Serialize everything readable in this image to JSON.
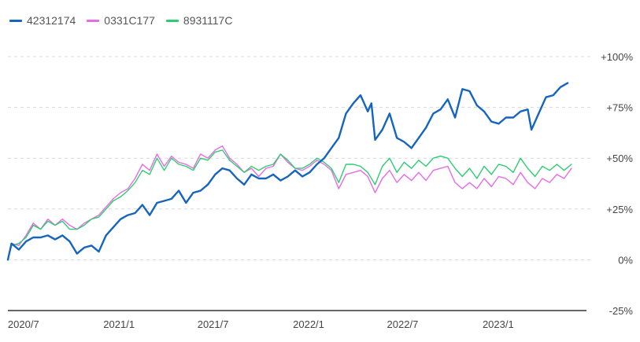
{
  "chart_data": {
    "type": "line",
    "title": "",
    "xlabel": "",
    "ylabel": "",
    "ylim": [
      -25,
      100
    ],
    "x_range": [
      "2020-06-01",
      "2023-06-20"
    ],
    "x_tick_labels": [
      {
        "date": "2020-07-01",
        "label": "2020/7"
      },
      {
        "date": "2021-01-01",
        "label": "2021/1"
      },
      {
        "date": "2021-07-01",
        "label": "2021/7"
      },
      {
        "date": "2022-01-01",
        "label": "2022/1"
      },
      {
        "date": "2022-07-01",
        "label": "2022/7"
      },
      {
        "date": "2023-01-01",
        "label": "2023/1"
      }
    ],
    "y_ticks": [
      {
        "value": 100,
        "label": "+100%"
      },
      {
        "value": 75,
        "label": "+75%"
      },
      {
        "value": 50,
        "label": "+50%"
      },
      {
        "value": 25,
        "label": "+25%"
      },
      {
        "value": 0,
        "label": "0%"
      },
      {
        "value": -25,
        "label": "-25%"
      }
    ],
    "grid": "horizontal dashed",
    "legend_position": "top-left",
    "series": [
      {
        "name": "42312174",
        "color": "#1565c0",
        "points": [
          [
            "2020-06-01",
            0
          ],
          [
            "2020-06-08",
            8
          ],
          [
            "2020-06-22",
            5
          ],
          [
            "2020-07-06",
            9
          ],
          [
            "2020-07-20",
            11
          ],
          [
            "2020-08-03",
            11
          ],
          [
            "2020-08-17",
            12
          ],
          [
            "2020-08-31",
            10
          ],
          [
            "2020-09-14",
            12
          ],
          [
            "2020-09-28",
            9
          ],
          [
            "2020-10-12",
            3
          ],
          [
            "2020-10-26",
            6
          ],
          [
            "2020-11-09",
            7
          ],
          [
            "2020-11-23",
            4
          ],
          [
            "2020-12-07",
            12
          ],
          [
            "2020-12-21",
            16
          ],
          [
            "2021-01-04",
            20
          ],
          [
            "2021-01-18",
            22
          ],
          [
            "2021-02-01",
            23
          ],
          [
            "2021-02-15",
            27
          ],
          [
            "2021-03-01",
            22
          ],
          [
            "2021-03-15",
            28
          ],
          [
            "2021-03-29",
            29
          ],
          [
            "2021-04-12",
            30
          ],
          [
            "2021-04-26",
            34
          ],
          [
            "2021-05-10",
            28
          ],
          [
            "2021-05-24",
            33
          ],
          [
            "2021-06-07",
            34
          ],
          [
            "2021-06-21",
            37
          ],
          [
            "2021-07-05",
            42
          ],
          [
            "2021-07-19",
            45
          ],
          [
            "2021-08-02",
            44
          ],
          [
            "2021-08-16",
            40
          ],
          [
            "2021-08-30",
            37
          ],
          [
            "2021-09-13",
            42
          ],
          [
            "2021-09-27",
            40
          ],
          [
            "2021-10-11",
            40
          ],
          [
            "2021-10-25",
            42
          ],
          [
            "2021-11-08",
            39
          ],
          [
            "2021-11-22",
            41
          ],
          [
            "2021-12-06",
            44
          ],
          [
            "2021-12-20",
            41
          ],
          [
            "2022-01-03",
            43
          ],
          [
            "2022-01-17",
            47
          ],
          [
            "2022-01-31",
            50
          ],
          [
            "2022-02-14",
            55
          ],
          [
            "2022-02-28",
            60
          ],
          [
            "2022-03-14",
            72
          ],
          [
            "2022-03-28",
            77
          ],
          [
            "2022-04-11",
            81
          ],
          [
            "2022-04-25",
            73
          ],
          [
            "2022-05-02",
            77
          ],
          [
            "2022-05-09",
            59
          ],
          [
            "2022-05-23",
            64
          ],
          [
            "2022-06-06",
            72
          ],
          [
            "2022-06-20",
            60
          ],
          [
            "2022-07-04",
            58
          ],
          [
            "2022-07-18",
            55
          ],
          [
            "2022-08-01",
            60
          ],
          [
            "2022-08-15",
            65
          ],
          [
            "2022-08-29",
            72
          ],
          [
            "2022-09-12",
            74
          ],
          [
            "2022-09-26",
            79
          ],
          [
            "2022-10-10",
            70
          ],
          [
            "2022-10-24",
            84
          ],
          [
            "2022-11-07",
            83
          ],
          [
            "2022-11-21",
            76
          ],
          [
            "2022-12-05",
            73
          ],
          [
            "2022-12-19",
            68
          ],
          [
            "2023-01-02",
            67
          ],
          [
            "2023-01-16",
            70
          ],
          [
            "2023-01-30",
            70
          ],
          [
            "2023-02-13",
            73
          ],
          [
            "2023-02-27",
            74
          ],
          [
            "2023-03-06",
            64
          ],
          [
            "2023-03-20",
            72
          ],
          [
            "2023-04-03",
            80
          ],
          [
            "2023-04-17",
            81
          ],
          [
            "2023-05-01",
            85
          ],
          [
            "2023-05-15",
            87
          ]
        ]
      },
      {
        "name": "0331C177",
        "color": "#e66be6",
        "points": [
          [
            "2020-06-01",
            0
          ],
          [
            "2020-06-08",
            8
          ],
          [
            "2020-06-22",
            7
          ],
          [
            "2020-07-06",
            12
          ],
          [
            "2020-07-20",
            18
          ],
          [
            "2020-08-03",
            15
          ],
          [
            "2020-08-17",
            20
          ],
          [
            "2020-08-31",
            17
          ],
          [
            "2020-09-14",
            20
          ],
          [
            "2020-09-28",
            17
          ],
          [
            "2020-10-12",
            15
          ],
          [
            "2020-10-26",
            18
          ],
          [
            "2020-11-09",
            20
          ],
          [
            "2020-11-23",
            22
          ],
          [
            "2020-12-07",
            26
          ],
          [
            "2020-12-21",
            30
          ],
          [
            "2021-01-04",
            33
          ],
          [
            "2021-01-18",
            35
          ],
          [
            "2021-02-01",
            40
          ],
          [
            "2021-02-15",
            47
          ],
          [
            "2021-03-01",
            44
          ],
          [
            "2021-03-15",
            52
          ],
          [
            "2021-03-29",
            46
          ],
          [
            "2021-04-12",
            51
          ],
          [
            "2021-04-26",
            48
          ],
          [
            "2021-05-10",
            47
          ],
          [
            "2021-05-24",
            45
          ],
          [
            "2021-06-07",
            52
          ],
          [
            "2021-06-21",
            50
          ],
          [
            "2021-07-05",
            54
          ],
          [
            "2021-07-19",
            56
          ],
          [
            "2021-08-02",
            50
          ],
          [
            "2021-08-16",
            47
          ],
          [
            "2021-08-30",
            43
          ],
          [
            "2021-09-13",
            45
          ],
          [
            "2021-09-27",
            41
          ],
          [
            "2021-10-11",
            45
          ],
          [
            "2021-10-25",
            46
          ],
          [
            "2021-11-08",
            52
          ],
          [
            "2021-11-22",
            48
          ],
          [
            "2021-12-06",
            45
          ],
          [
            "2021-12-20",
            44
          ],
          [
            "2022-01-03",
            46
          ],
          [
            "2022-01-17",
            49
          ],
          [
            "2022-01-31",
            47
          ],
          [
            "2022-02-14",
            44
          ],
          [
            "2022-02-28",
            35
          ],
          [
            "2022-03-14",
            42
          ],
          [
            "2022-03-28",
            43
          ],
          [
            "2022-04-11",
            44
          ],
          [
            "2022-04-25",
            41
          ],
          [
            "2022-05-09",
            33
          ],
          [
            "2022-05-23",
            40
          ],
          [
            "2022-06-06",
            44
          ],
          [
            "2022-06-20",
            38
          ],
          [
            "2022-07-04",
            42
          ],
          [
            "2022-07-18",
            39
          ],
          [
            "2022-08-01",
            43
          ],
          [
            "2022-08-15",
            39
          ],
          [
            "2022-08-29",
            44
          ],
          [
            "2022-09-12",
            45
          ],
          [
            "2022-09-26",
            46
          ],
          [
            "2022-10-10",
            38
          ],
          [
            "2022-10-24",
            35
          ],
          [
            "2022-11-07",
            38
          ],
          [
            "2022-11-21",
            35
          ],
          [
            "2022-12-05",
            40
          ],
          [
            "2022-12-19",
            36
          ],
          [
            "2023-01-02",
            41
          ],
          [
            "2023-01-16",
            40
          ],
          [
            "2023-01-30",
            37
          ],
          [
            "2023-02-13",
            43
          ],
          [
            "2023-02-27",
            38
          ],
          [
            "2023-03-13",
            35
          ],
          [
            "2023-03-27",
            40
          ],
          [
            "2023-04-10",
            38
          ],
          [
            "2023-04-24",
            42
          ],
          [
            "2023-05-08",
            40
          ],
          [
            "2023-05-22",
            45
          ]
        ]
      },
      {
        "name": "8931117C",
        "color": "#2ecc71",
        "points": [
          [
            "2020-06-01",
            0
          ],
          [
            "2020-06-08",
            7
          ],
          [
            "2020-06-22",
            8
          ],
          [
            "2020-07-06",
            11
          ],
          [
            "2020-07-20",
            17
          ],
          [
            "2020-08-03",
            15
          ],
          [
            "2020-08-17",
            19
          ],
          [
            "2020-08-31",
            17
          ],
          [
            "2020-09-14",
            19
          ],
          [
            "2020-09-28",
            15
          ],
          [
            "2020-10-12",
            15
          ],
          [
            "2020-10-26",
            17
          ],
          [
            "2020-11-09",
            20
          ],
          [
            "2020-11-23",
            21
          ],
          [
            "2020-12-07",
            25
          ],
          [
            "2020-12-21",
            29
          ],
          [
            "2021-01-04",
            31
          ],
          [
            "2021-01-18",
            34
          ],
          [
            "2021-02-01",
            38
          ],
          [
            "2021-02-15",
            44
          ],
          [
            "2021-03-01",
            42
          ],
          [
            "2021-03-15",
            50
          ],
          [
            "2021-03-29",
            44
          ],
          [
            "2021-04-12",
            50
          ],
          [
            "2021-04-26",
            47
          ],
          [
            "2021-05-10",
            46
          ],
          [
            "2021-05-24",
            44
          ],
          [
            "2021-06-07",
            50
          ],
          [
            "2021-06-21",
            49
          ],
          [
            "2021-07-05",
            53
          ],
          [
            "2021-07-19",
            54
          ],
          [
            "2021-08-02",
            49
          ],
          [
            "2021-08-16",
            46
          ],
          [
            "2021-08-30",
            43
          ],
          [
            "2021-09-13",
            46
          ],
          [
            "2021-09-27",
            44
          ],
          [
            "2021-10-11",
            46
          ],
          [
            "2021-10-25",
            47
          ],
          [
            "2021-11-08",
            52
          ],
          [
            "2021-11-22",
            49
          ],
          [
            "2021-12-06",
            45
          ],
          [
            "2021-12-20",
            45
          ],
          [
            "2022-01-03",
            47
          ],
          [
            "2022-01-17",
            50
          ],
          [
            "2022-01-31",
            48
          ],
          [
            "2022-02-14",
            45
          ],
          [
            "2022-02-28",
            38
          ],
          [
            "2022-03-14",
            47
          ],
          [
            "2022-03-28",
            47
          ],
          [
            "2022-04-11",
            46
          ],
          [
            "2022-04-25",
            43
          ],
          [
            "2022-05-09",
            37
          ],
          [
            "2022-05-23",
            46
          ],
          [
            "2022-06-06",
            50
          ],
          [
            "2022-06-20",
            43
          ],
          [
            "2022-07-04",
            48
          ],
          [
            "2022-07-18",
            45
          ],
          [
            "2022-08-01",
            49
          ],
          [
            "2022-08-15",
            46
          ],
          [
            "2022-08-29",
            50
          ],
          [
            "2022-09-12",
            51
          ],
          [
            "2022-09-26",
            50
          ],
          [
            "2022-10-10",
            45
          ],
          [
            "2022-10-24",
            41
          ],
          [
            "2022-11-07",
            45
          ],
          [
            "2022-11-21",
            40
          ],
          [
            "2022-12-05",
            46
          ],
          [
            "2022-12-19",
            42
          ],
          [
            "2023-01-02",
            47
          ],
          [
            "2023-01-16",
            46
          ],
          [
            "2023-01-30",
            43
          ],
          [
            "2023-02-13",
            50
          ],
          [
            "2023-02-27",
            45
          ],
          [
            "2023-03-13",
            41
          ],
          [
            "2023-03-27",
            46
          ],
          [
            "2023-04-10",
            44
          ],
          [
            "2023-04-24",
            47
          ],
          [
            "2023-05-08",
            44
          ],
          [
            "2023-05-22",
            47
          ]
        ]
      }
    ]
  }
}
